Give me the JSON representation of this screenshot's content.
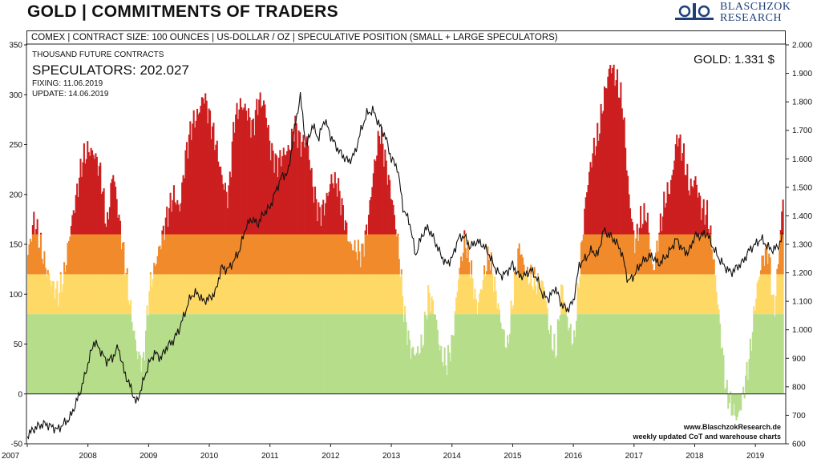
{
  "header": {
    "title": "GOLD | COMMITMENTS OF TRADERS",
    "subtitle": "COMEX  |  CONTRACT SIZE: 100 OUNCES  |  US-DOLLAR / OZ  |  SPECULATIVE  POSITION (SMALL + LARGE SPECULATORS)",
    "logo_line1": "BLASCHZOK",
    "logo_line2": "RESEARCH"
  },
  "annotations": {
    "unit": "THOUSAND FUTURE CONTRACTS",
    "speculators": "SPECULATORS: 202.027",
    "fixing": "FIXING: 11.06.2019",
    "update": "UPDATE: 14.06.2019",
    "gold_price": "GOLD: 1.331 $",
    "footer_url": "www.BlaschzokResearch.de",
    "footer_note": "weekly updated CoT and warehouse charts"
  },
  "colors": {
    "red": "#cc1f1f",
    "orange": "#f08a2a",
    "yellow": "#ffd966",
    "green": "#b6dd8a",
    "line": "#111111"
  },
  "chart_data": {
    "type": "area",
    "x_labels": [
      "2007",
      "2008",
      "2009",
      "2010",
      "2011",
      "2012",
      "2013",
      "2014",
      "2015",
      "2016",
      "2017",
      "2018",
      "2019"
    ],
    "xlim": [
      "2007-01",
      "2019-06"
    ],
    "y_left": {
      "ticks": [
        -50,
        0,
        50,
        100,
        150,
        200,
        250,
        300,
        350
      ],
      "ylim": [
        -50,
        350
      ],
      "label": "THOUSAND FUTURE CONTRACTS"
    },
    "y_right": {
      "ticks": [
        "600",
        "700",
        "800",
        "900",
        "1.000",
        "1.100",
        "1.200",
        "1.300",
        "1.400",
        "1.500",
        "1.600",
        "1.700",
        "1.800",
        "1.900",
        "2.000"
      ],
      "ylim": [
        600,
        2000
      ]
    },
    "color_zones": [
      {
        "from": -50,
        "to": 80,
        "color": "green"
      },
      {
        "from": 80,
        "to": 120,
        "color": "yellow"
      },
      {
        "from": 120,
        "to": 160,
        "color": "orange"
      },
      {
        "from": 160,
        "to": 350,
        "color": "red"
      }
    ],
    "series": [
      {
        "axis": "left",
        "style": "bars",
        "points": [
          [
            2007.0,
            140
          ],
          [
            2007.1,
            175
          ],
          [
            2007.2,
            150
          ],
          [
            2007.3,
            125
          ],
          [
            2007.4,
            110
          ],
          [
            2007.5,
            100
          ],
          [
            2007.6,
            120
          ],
          [
            2007.7,
            165
          ],
          [
            2007.8,
            200
          ],
          [
            2007.9,
            235
          ],
          [
            2008.0,
            245
          ],
          [
            2008.1,
            240
          ],
          [
            2008.2,
            220
          ],
          [
            2008.3,
            165
          ],
          [
            2008.4,
            225
          ],
          [
            2008.5,
            175
          ],
          [
            2008.6,
            130
          ],
          [
            2008.7,
            80
          ],
          [
            2008.8,
            40
          ],
          [
            2008.9,
            30
          ],
          [
            2009.0,
            105
          ],
          [
            2009.1,
            130
          ],
          [
            2009.2,
            155
          ],
          [
            2009.3,
            180
          ],
          [
            2009.4,
            200
          ],
          [
            2009.5,
            185
          ],
          [
            2009.6,
            240
          ],
          [
            2009.7,
            270
          ],
          [
            2009.8,
            280
          ],
          [
            2009.9,
            300
          ],
          [
            2010.0,
            275
          ],
          [
            2010.1,
            250
          ],
          [
            2010.2,
            215
          ],
          [
            2010.3,
            195
          ],
          [
            2010.4,
            275
          ],
          [
            2010.5,
            290
          ],
          [
            2010.6,
            285
          ],
          [
            2010.7,
            265
          ],
          [
            2010.8,
            295
          ],
          [
            2010.9,
            290
          ],
          [
            2011.0,
            245
          ],
          [
            2011.1,
            230
          ],
          [
            2011.2,
            240
          ],
          [
            2011.3,
            245
          ],
          [
            2011.4,
            270
          ],
          [
            2011.5,
            250
          ],
          [
            2011.6,
            255
          ],
          [
            2011.7,
            205
          ],
          [
            2011.8,
            180
          ],
          [
            2011.9,
            190
          ],
          [
            2012.0,
            215
          ],
          [
            2012.1,
            210
          ],
          [
            2012.2,
            180
          ],
          [
            2012.3,
            150
          ],
          [
            2012.4,
            145
          ],
          [
            2012.5,
            140
          ],
          [
            2012.6,
            170
          ],
          [
            2012.7,
            225
          ],
          [
            2012.8,
            265
          ],
          [
            2012.9,
            230
          ],
          [
            2013.0,
            195
          ],
          [
            2013.1,
            150
          ],
          [
            2013.2,
            80
          ],
          [
            2013.3,
            45
          ],
          [
            2013.4,
            40
          ],
          [
            2013.5,
            50
          ],
          [
            2013.6,
            100
          ],
          [
            2013.7,
            85
          ],
          [
            2013.8,
            40
          ],
          [
            2013.9,
            30
          ],
          [
            2014.0,
            55
          ],
          [
            2014.1,
            120
          ],
          [
            2014.2,
            155
          ],
          [
            2014.3,
            125
          ],
          [
            2014.4,
            85
          ],
          [
            2014.5,
            115
          ],
          [
            2014.6,
            140
          ],
          [
            2014.7,
            105
          ],
          [
            2014.8,
            70
          ],
          [
            2014.9,
            45
          ],
          [
            2015.0,
            100
          ],
          [
            2015.1,
            150
          ],
          [
            2015.2,
            120
          ],
          [
            2015.3,
            115
          ],
          [
            2015.4,
            110
          ],
          [
            2015.5,
            110
          ],
          [
            2015.6,
            60
          ],
          [
            2015.7,
            40
          ],
          [
            2015.8,
            110
          ],
          [
            2015.9,
            70
          ],
          [
            2016.0,
            50
          ],
          [
            2016.1,
            130
          ],
          [
            2016.2,
            200
          ],
          [
            2016.3,
            240
          ],
          [
            2016.4,
            260
          ],
          [
            2016.5,
            300
          ],
          [
            2016.6,
            330
          ],
          [
            2016.7,
            315
          ],
          [
            2016.8,
            290
          ],
          [
            2016.9,
            200
          ],
          [
            2017.0,
            150
          ],
          [
            2017.1,
            175
          ],
          [
            2017.2,
            180
          ],
          [
            2017.3,
            120
          ],
          [
            2017.4,
            160
          ],
          [
            2017.5,
            195
          ],
          [
            2017.6,
            210
          ],
          [
            2017.7,
            260
          ],
          [
            2017.8,
            240
          ],
          [
            2017.9,
            205
          ],
          [
            2018.0,
            215
          ],
          [
            2018.1,
            185
          ],
          [
            2018.2,
            180
          ],
          [
            2018.3,
            135
          ],
          [
            2018.4,
            70
          ],
          [
            2018.5,
            5
          ],
          [
            2018.6,
            -15
          ],
          [
            2018.7,
            -25
          ],
          [
            2018.8,
            5
          ],
          [
            2018.9,
            40
          ],
          [
            2019.0,
            100
          ],
          [
            2019.1,
            135
          ],
          [
            2019.2,
            145
          ],
          [
            2019.3,
            80
          ],
          [
            2019.4,
            160
          ],
          [
            2019.45,
            202
          ]
        ]
      },
      {
        "axis": "right",
        "style": "line",
        "points": [
          [
            2007.0,
            630
          ],
          [
            2007.1,
            650
          ],
          [
            2007.2,
            665
          ],
          [
            2007.3,
            670
          ],
          [
            2007.4,
            660
          ],
          [
            2007.5,
            650
          ],
          [
            2007.6,
            670
          ],
          [
            2007.7,
            690
          ],
          [
            2007.8,
            740
          ],
          [
            2007.9,
            800
          ],
          [
            2008.0,
            880
          ],
          [
            2008.1,
            960
          ],
          [
            2008.2,
            930
          ],
          [
            2008.3,
            890
          ],
          [
            2008.4,
            900
          ],
          [
            2008.5,
            940
          ],
          [
            2008.6,
            850
          ],
          [
            2008.7,
            800
          ],
          [
            2008.8,
            740
          ],
          [
            2008.9,
            810
          ],
          [
            2009.0,
            880
          ],
          [
            2009.1,
            920
          ],
          [
            2009.2,
            900
          ],
          [
            2009.3,
            940
          ],
          [
            2009.4,
            960
          ],
          [
            2009.5,
            1000
          ],
          [
            2009.6,
            1060
          ],
          [
            2009.7,
            1120
          ],
          [
            2009.8,
            1130
          ],
          [
            2009.9,
            1100
          ],
          [
            2010.0,
            1110
          ],
          [
            2010.1,
            1130
          ],
          [
            2010.2,
            1220
          ],
          [
            2010.3,
            1210
          ],
          [
            2010.4,
            1240
          ],
          [
            2010.5,
            1280
          ],
          [
            2010.6,
            1360
          ],
          [
            2010.7,
            1390
          ],
          [
            2010.8,
            1370
          ],
          [
            2010.9,
            1410
          ],
          [
            2011.0,
            1430
          ],
          [
            2011.1,
            1490
          ],
          [
            2011.2,
            1540
          ],
          [
            2011.3,
            1550
          ],
          [
            2011.4,
            1700
          ],
          [
            2011.5,
            1820
          ],
          [
            2011.6,
            1640
          ],
          [
            2011.7,
            1720
          ],
          [
            2011.8,
            1670
          ],
          [
            2011.9,
            1740
          ],
          [
            2012.0,
            1680
          ],
          [
            2012.1,
            1640
          ],
          [
            2012.2,
            1610
          ],
          [
            2012.3,
            1590
          ],
          [
            2012.4,
            1620
          ],
          [
            2012.5,
            1700
          ],
          [
            2012.6,
            1760
          ],
          [
            2012.7,
            1770
          ],
          [
            2012.8,
            1720
          ],
          [
            2012.9,
            1680
          ],
          [
            2013.0,
            1600
          ],
          [
            2013.1,
            1570
          ],
          [
            2013.2,
            1420
          ],
          [
            2013.3,
            1380
          ],
          [
            2013.4,
            1260
          ],
          [
            2013.5,
            1330
          ],
          [
            2013.6,
            1360
          ],
          [
            2013.7,
            1320
          ],
          [
            2013.8,
            1270
          ],
          [
            2013.9,
            1230
          ],
          [
            2014.0,
            1250
          ],
          [
            2014.1,
            1320
          ],
          [
            2014.2,
            1330
          ],
          [
            2014.3,
            1290
          ],
          [
            2014.4,
            1310
          ],
          [
            2014.5,
            1300
          ],
          [
            2014.6,
            1270
          ],
          [
            2014.7,
            1220
          ],
          [
            2014.8,
            1190
          ],
          [
            2014.9,
            1200
          ],
          [
            2015.0,
            1230
          ],
          [
            2015.1,
            1190
          ],
          [
            2015.2,
            1190
          ],
          [
            2015.3,
            1210
          ],
          [
            2015.4,
            1180
          ],
          [
            2015.5,
            1120
          ],
          [
            2015.6,
            1110
          ],
          [
            2015.7,
            1150
          ],
          [
            2015.8,
            1090
          ],
          [
            2015.9,
            1070
          ],
          [
            2016.0,
            1100
          ],
          [
            2016.1,
            1230
          ],
          [
            2016.2,
            1250
          ],
          [
            2016.3,
            1280
          ],
          [
            2016.4,
            1260
          ],
          [
            2016.5,
            1350
          ],
          [
            2016.6,
            1330
          ],
          [
            2016.7,
            1310
          ],
          [
            2016.8,
            1270
          ],
          [
            2016.9,
            1170
          ],
          [
            2017.0,
            1190
          ],
          [
            2017.1,
            1230
          ],
          [
            2017.2,
            1250
          ],
          [
            2017.3,
            1260
          ],
          [
            2017.4,
            1230
          ],
          [
            2017.5,
            1250
          ],
          [
            2017.6,
            1280
          ],
          [
            2017.7,
            1320
          ],
          [
            2017.8,
            1280
          ],
          [
            2017.9,
            1270
          ],
          [
            2018.0,
            1330
          ],
          [
            2018.1,
            1330
          ],
          [
            2018.2,
            1340
          ],
          [
            2018.3,
            1290
          ],
          [
            2018.4,
            1250
          ],
          [
            2018.5,
            1220
          ],
          [
            2018.6,
            1200
          ],
          [
            2018.7,
            1220
          ],
          [
            2018.8,
            1240
          ],
          [
            2018.9,
            1280
          ],
          [
            2019.0,
            1300
          ],
          [
            2019.1,
            1320
          ],
          [
            2019.2,
            1290
          ],
          [
            2019.3,
            1280
          ],
          [
            2019.4,
            1300
          ],
          [
            2019.45,
            1331
          ]
        ]
      }
    ]
  }
}
